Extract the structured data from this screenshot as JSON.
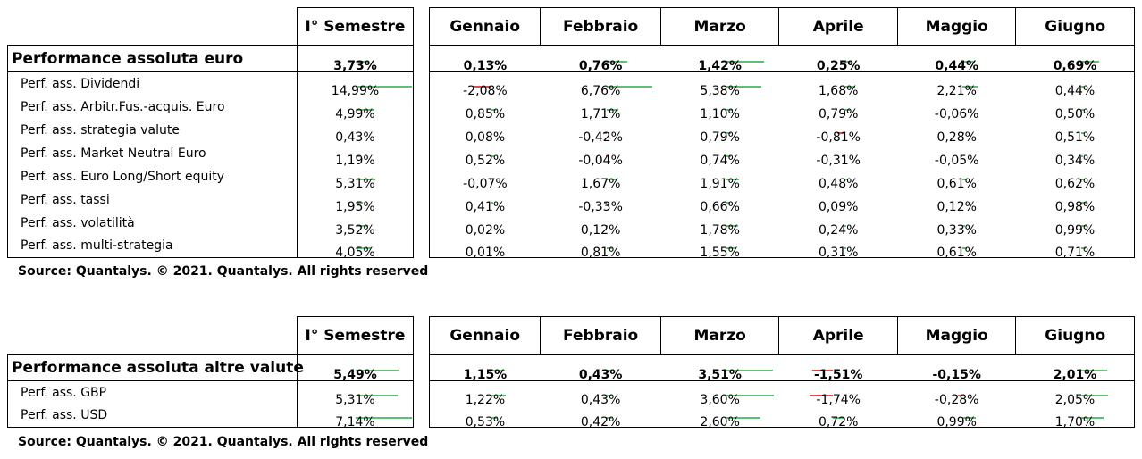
{
  "table1": {
    "header_semestre": "I° Semestre",
    "months": [
      "Gennaio",
      "Febbraio",
      "Marzo",
      "Aprile",
      "Maggio",
      "Giugno"
    ],
    "rows": [
      {
        "label": "Performance assoluta euro",
        "bold": true,
        "semestre": 3.73,
        "semestre_txt": "3,73%",
        "vals": [
          0.13,
          0.76,
          1.42,
          0.25,
          0.44,
          0.69
        ],
        "txt": [
          "0,13%",
          "0,76%",
          "1,42%",
          "0,25%",
          "0,44%",
          "0,69%"
        ]
      },
      {
        "label": "Perf. ass. Dividendi",
        "bold": false,
        "semestre": 14.99,
        "semestre_txt": "14,99%",
        "vals": [
          -2.08,
          6.76,
          5.38,
          1.68,
          2.21,
          0.44
        ],
        "txt": [
          "-2,08%",
          "6,76%",
          "5,38%",
          "1,68%",
          "2,21%",
          "0,44%"
        ]
      },
      {
        "label": "Perf. ass. Arbitr.Fus.-acquis. Euro",
        "bold": false,
        "semestre": 4.99,
        "semestre_txt": "4,99%",
        "vals": [
          0.85,
          1.71,
          1.1,
          0.79,
          -0.06,
          0.5
        ],
        "txt": [
          "0,85%",
          "1,71%",
          "1,10%",
          "0,79%",
          "-0,06%",
          "0,50%"
        ]
      },
      {
        "label": "Perf. ass. strategia valute",
        "bold": false,
        "semestre": 0.43,
        "semestre_txt": "0,43%",
        "vals": [
          0.08,
          -0.42,
          0.79,
          -0.81,
          0.28,
          0.51
        ],
        "txt": [
          "0,08%",
          "-0,42%",
          "0,79%",
          "-0,81%",
          "0,28%",
          "0,51%"
        ]
      },
      {
        "label": "Perf. ass. Market Neutral Euro",
        "bold": false,
        "semestre": 1.19,
        "semestre_txt": "1,19%",
        "vals": [
          0.52,
          -0.04,
          0.74,
          -0.31,
          -0.05,
          0.34
        ],
        "txt": [
          "0,52%",
          "-0,04%",
          "0,74%",
          "-0,31%",
          "-0,05%",
          "0,34%"
        ]
      },
      {
        "label": "Perf. ass. Euro Long/Short equity",
        "bold": false,
        "semestre": 5.31,
        "semestre_txt": "5,31%",
        "vals": [
          -0.07,
          1.67,
          1.91,
          0.48,
          0.61,
          0.62
        ],
        "txt": [
          "-0,07%",
          "1,67%",
          "1,91%",
          "0,48%",
          "0,61%",
          "0,62%"
        ]
      },
      {
        "label": "Perf. ass. tassi",
        "bold": false,
        "semestre": 1.95,
        "semestre_txt": "1,95%",
        "vals": [
          0.41,
          -0.33,
          0.66,
          0.09,
          0.12,
          0.98
        ],
        "txt": [
          "0,41%",
          "-0,33%",
          "0,66%",
          "0,09%",
          "0,12%",
          "0,98%"
        ]
      },
      {
        "label": "Perf. ass. volatilità",
        "bold": false,
        "semestre": 3.52,
        "semestre_txt": "3,52%",
        "vals": [
          0.02,
          0.12,
          1.78,
          0.24,
          0.33,
          0.99
        ],
        "txt": [
          "0,02%",
          "0,12%",
          "1,78%",
          "0,24%",
          "0,33%",
          "0,99%"
        ]
      },
      {
        "label": "Perf. ass. multi-strategia",
        "bold": false,
        "semestre": 4.05,
        "semestre_txt": "4,05%",
        "vals": [
          0.01,
          0.81,
          1.55,
          0.31,
          0.61,
          0.71
        ],
        "txt": [
          "0,01%",
          "0,81%",
          "1,55%",
          "0,31%",
          "0,61%",
          "0,71%"
        ]
      }
    ],
    "source": "Source: Quantalys. © 2021. Quantalys. All rights reserved"
  },
  "table2": {
    "header_semestre": "I° Semestre",
    "months": [
      "Gennaio",
      "Febbraio",
      "Marzo",
      "Aprile",
      "Maggio",
      "Giugno"
    ],
    "rows": [
      {
        "label": "Performance assoluta altre valute",
        "bold": true,
        "semestre": 5.49,
        "semestre_txt": "5,49%",
        "vals": [
          1.15,
          0.43,
          3.51,
          -1.51,
          -0.15,
          2.01
        ],
        "txt": [
          "1,15%",
          "0,43%",
          "3,51%",
          "-1,51%",
          "-0,15%",
          "2,01%"
        ]
      },
      {
        "label": "Perf. ass. GBP",
        "bold": false,
        "semestre": 5.31,
        "semestre_txt": "5,31%",
        "vals": [
          1.22,
          0.43,
          3.6,
          -1.74,
          -0.28,
          2.05
        ],
        "txt": [
          "1,22%",
          "0,43%",
          "3,60%",
          "-1,74%",
          "-0,28%",
          "2,05%"
        ]
      },
      {
        "label": "Perf. ass. USD",
        "bold": false,
        "semestre": 7.14,
        "semestre_txt": "7,14%",
        "vals": [
          0.53,
          0.42,
          2.6,
          0.72,
          0.99,
          1.7
        ],
        "txt": [
          "0,53%",
          "0,42%",
          "2,60%",
          "0,72%",
          "0,99%",
          "1,70%"
        ]
      }
    ],
    "source": "Source: Quantalys. © 2021. Quantalys. All rights reserved"
  },
  "colors": {
    "positive_bar": "#5cc170",
    "negative_bar": "#f23a3a"
  }
}
